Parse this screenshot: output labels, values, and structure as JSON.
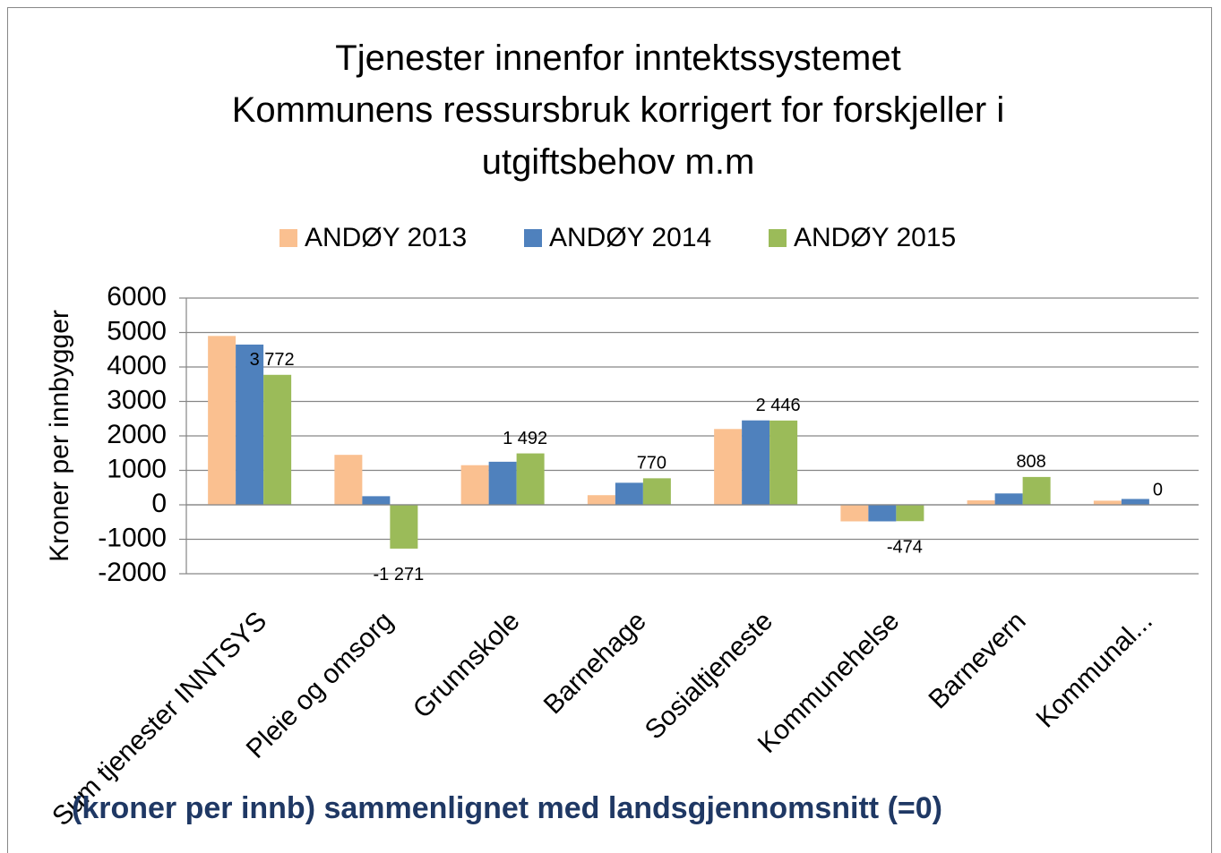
{
  "chart_data": {
    "type": "bar",
    "title": "Tjenester innenfor inntektssystemet",
    "subtitle": "Kommunens ressursbruk korrigert for  forskjeller i utgiftsbehov m.m",
    "annotation": "(kroner per innb) sammenlignet med landsgjennomsnitt (=0)",
    "y_label": "Kroner per innbygger",
    "categories": [
      "Sum tjenester INNTSYS",
      "Pleie og omsorg",
      "Grunnskole",
      "Barnehage",
      "Sosialtjeneste",
      "Kommunehelse",
      "Barnevern",
      "Kommunal..."
    ],
    "series": [
      {
        "name": "ANDØY 2013",
        "color": "#fac090",
        "values": [
          4900,
          1450,
          1150,
          280,
          2200,
          -480,
          130,
          120
        ]
      },
      {
        "name": "ANDØY 2014",
        "color": "#4f81bd",
        "values": [
          4650,
          250,
          1250,
          640,
          2450,
          -480,
          330,
          170
        ]
      },
      {
        "name": "ANDØY 2015",
        "color": "#9bbb59",
        "values": [
          3772,
          -1271,
          1492,
          770,
          2446,
          -474,
          808,
          0
        ],
        "value_labels": [
          "3 772",
          "-1 271",
          "1 492",
          "770",
          "2 446",
          "-474",
          "808",
          "0"
        ]
      }
    ],
    "ylim": [
      -2000,
      6000
    ],
    "yticks": [
      -2000,
      -1000,
      0,
      1000,
      2000,
      3000,
      4000,
      5000,
      6000
    ],
    "grid": true,
    "legend": "top"
  }
}
